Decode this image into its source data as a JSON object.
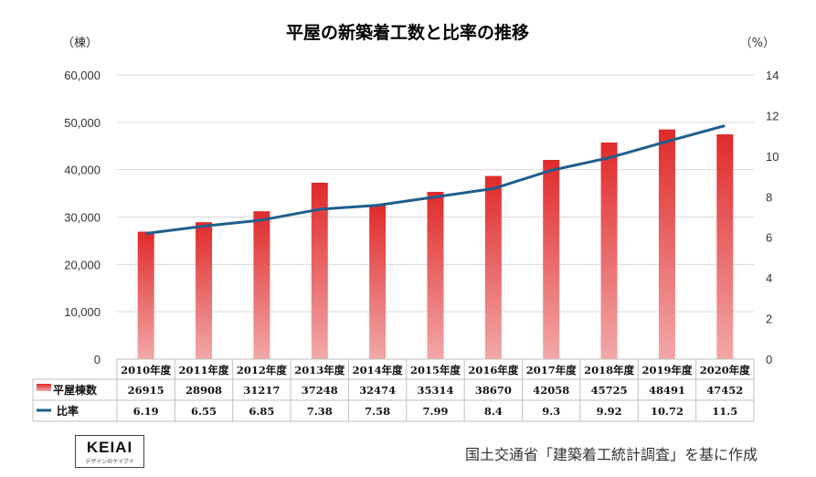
{
  "chart_data": {
    "type": "bar+line",
    "title": "平屋の新築着工数と比率の推移",
    "left_unit": "（棟）",
    "right_unit": "（%）",
    "categories": [
      "2010年度",
      "2011年度",
      "2012年度",
      "2013年度",
      "2014年度",
      "2015年度",
      "2016年度",
      "2017年度",
      "2018年度",
      "2019年度",
      "2020年度"
    ],
    "series": [
      {
        "name": "平屋棟数",
        "type": "bar",
        "axis": "left",
        "values": [
          26915,
          28908,
          31217,
          37248,
          32474,
          35314,
          38670,
          42058,
          45725,
          48491,
          47452
        ]
      },
      {
        "name": "比率",
        "type": "line",
        "axis": "right",
        "values": [
          6.19,
          6.55,
          6.85,
          7.38,
          7.58,
          7.99,
          8.4,
          9.3,
          9.92,
          10.72,
          11.5
        ]
      }
    ],
    "ylim_left": [
      0,
      60000
    ],
    "ylim_right": [
      0,
      14
    ],
    "left_ticks": [
      "0",
      "10,000",
      "20,000",
      "30,000",
      "40,000",
      "50,000",
      "60,000"
    ],
    "right_ticks": [
      "0",
      "2",
      "4",
      "6",
      "8",
      "10",
      "12",
      "14"
    ],
    "bar_label_texts": [
      "26915",
      "28908",
      "31217",
      "37248",
      "32474",
      "35314",
      "38670",
      "42058",
      "45725",
      "48491",
      "47452"
    ],
    "line_label_texts": [
      "6.19",
      "6.55",
      "6.85",
      "7.38",
      "7.58",
      "7.99",
      "8.4",
      "9.3",
      "9.92",
      "10.72",
      "11.5"
    ],
    "grid": "horizontal",
    "legend": "data-table",
    "colors": {
      "bar_top": "#e02a2a",
      "bar_bottom": "#f2a8a8",
      "line": "#1f5e8c",
      "grid": "#d9d9d9"
    }
  },
  "logo": {
    "name": "KEIAI",
    "tagline": "デザインのケイアイ"
  },
  "source_note": "国土交通省「建築着工統計調査」を基に作成"
}
